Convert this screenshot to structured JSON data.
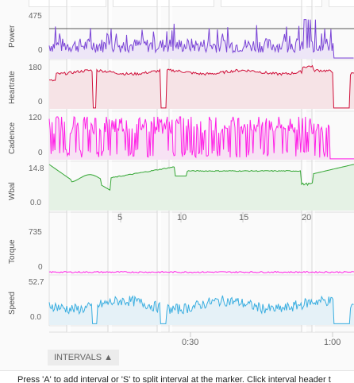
{
  "charts": {
    "power": {
      "label": "Power",
      "max": "475",
      "min": "0",
      "color": "#7a44d6",
      "fill": "#ede6f7"
    },
    "heartrate": {
      "label": "Heartrate",
      "max": "180",
      "min": "0",
      "color": "#d0103a",
      "fill": "#f6e3e6"
    },
    "cadence": {
      "label": "Cadence",
      "max": "120",
      "min": "0",
      "color": "#ff1fe6",
      "fill": "#f7e2f4"
    },
    "wbal": {
      "label": "Wbal",
      "max": "14.8",
      "min": "0.0",
      "color": "#33a633",
      "fill": "#e5f2e5"
    },
    "torque": {
      "label": "Torque",
      "max": "735",
      "min": "0",
      "color": "#ff1fe6"
    },
    "speed": {
      "label": "Speed",
      "max": "52.7",
      "min": "0.0",
      "color": "#3aaee0",
      "fill": "#e5f1f7"
    }
  },
  "distance_axis": [
    "5",
    "10",
    "15",
    "20"
  ],
  "time_axis": [
    "0:30",
    "1:00"
  ],
  "intervals_button": "INTERVALS ▲",
  "help_text": "Press 'A' to add interval or 'S' to split interval at the marker. Click interval header t"
}
